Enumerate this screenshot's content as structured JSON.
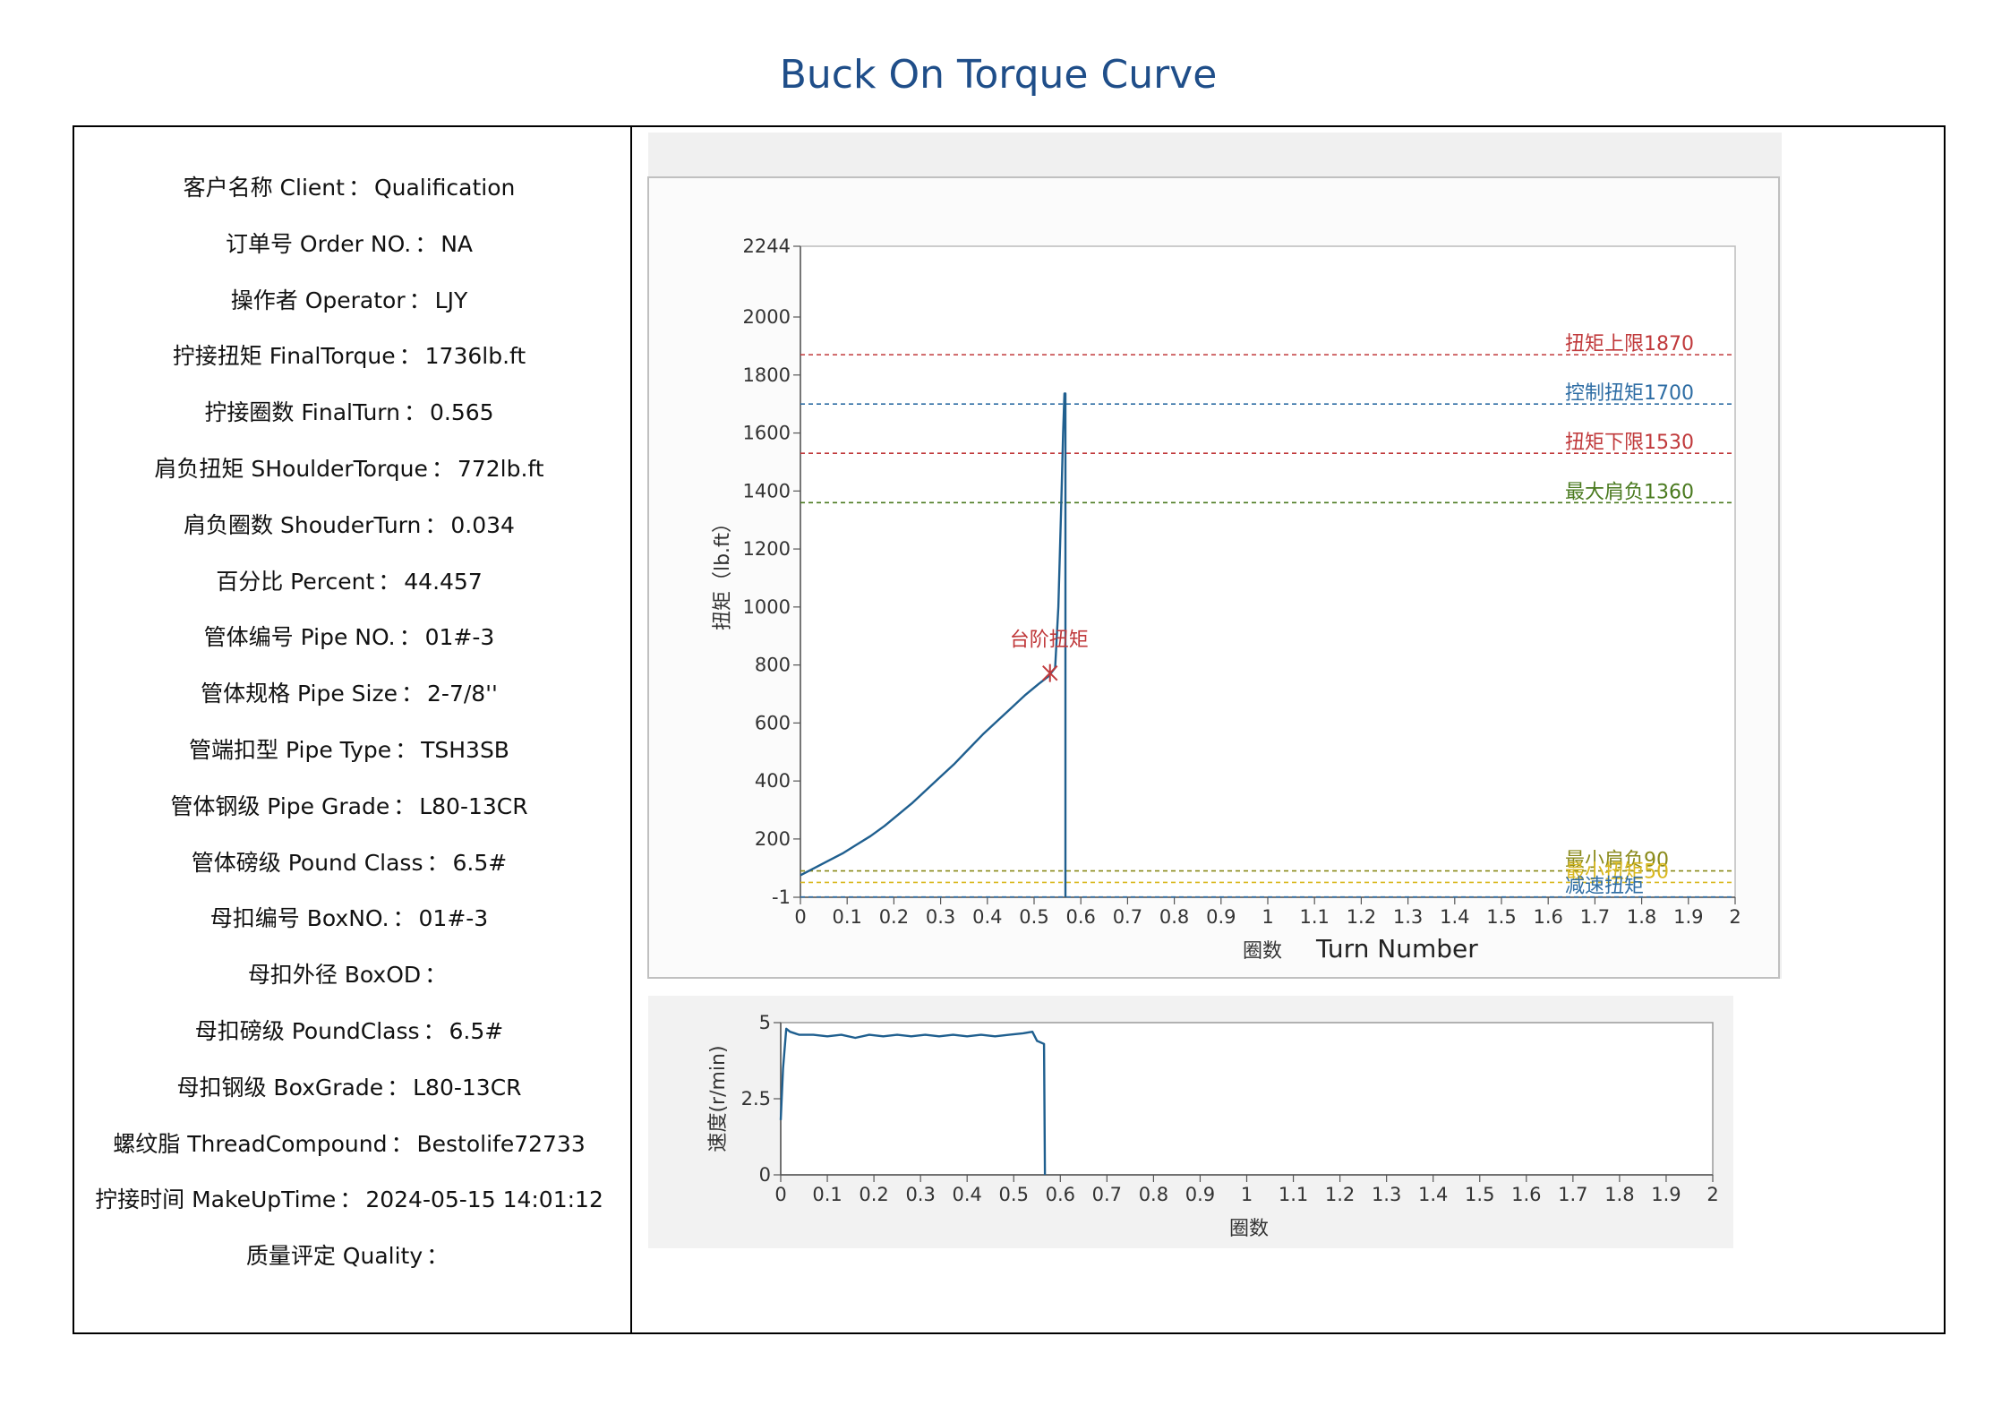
{
  "title": "Buck On Torque Curve",
  "info": [
    {
      "label": "客户名称 Client",
      "value": "Qualification"
    },
    {
      "label": "订单号 Order NO.",
      "value": "NA"
    },
    {
      "label": "操作者 Operator",
      "value": "LJY"
    },
    {
      "label": "拧接扭矩 FinalTorque",
      "value": "1736lb.ft"
    },
    {
      "label": "拧接圈数 FinalTurn",
      "value": "0.565"
    },
    {
      "label": "肩负扭矩 SHoulderTorque",
      "value": "772lb.ft"
    },
    {
      "label": "肩负圈数 ShouderTurn",
      "value": "0.034"
    },
    {
      "label": "百分比 Percent",
      "value": "44.457"
    },
    {
      "label": "管体编号 Pipe NO.",
      "value": "01#-3"
    },
    {
      "label": "管体规格 Pipe Size",
      "value": "2-7/8''"
    },
    {
      "label": "管端扣型 Pipe Type",
      "value": "TSH3SB"
    },
    {
      "label": "管体钢级 Pipe Grade",
      "value": "L80-13CR"
    },
    {
      "label": "管体磅级 Pound Class",
      "value": "6.5#"
    },
    {
      "label": "母扣编号 BoxNO.",
      "value": "01#-3"
    },
    {
      "label": "母扣外径 BoxOD",
      "value": ""
    },
    {
      "label": "母扣磅级 PoundClass",
      "value": "6.5#"
    },
    {
      "label": "母扣钢级 BoxGrade",
      "value": "L80-13CR"
    },
    {
      "label": "螺纹脂 ThreadCompound",
      "value": "Bestolife72733"
    },
    {
      "label": "拧接时间 MakeUpTime",
      "value": "2024-05-15 14:01:12"
    },
    {
      "label": "质量评定 Quality",
      "value": ""
    }
  ],
  "label_separator": "：",
  "chart_data": [
    {
      "type": "line",
      "ylabel": "扭矩（lb.ft）",
      "xlabel": "圈数",
      "xlabel_en": "Turn Number",
      "xlim": [
        0,
        2
      ],
      "ylim": [
        -1,
        2244
      ],
      "x_ticks": [
        "0",
        "0.1",
        "0.2",
        "0.3",
        "0.4",
        "0.5",
        "0.6",
        "0.7",
        "0.8",
        "0.9",
        "1",
        "1.1",
        "1.2",
        "1.3",
        "1.4",
        "1.5",
        "1.6",
        "1.7",
        "1.8",
        "1.9",
        "2"
      ],
      "y_ticks": [
        "-1",
        "200",
        "400",
        "600",
        "800",
        "1000",
        "1200",
        "1400",
        "1600",
        "1800",
        "2000",
        "2244"
      ],
      "grid": false,
      "series": [
        {
          "color": "#1f5f8f",
          "x": [
            0,
            0.03,
            0.06,
            0.09,
            0.12,
            0.15,
            0.18,
            0.21,
            0.24,
            0.27,
            0.3,
            0.33,
            0.36,
            0.39,
            0.42,
            0.45,
            0.48,
            0.51,
            0.53,
            0.545,
            0.552,
            0.558,
            0.562,
            0.565,
            0.567,
            0.567
          ],
          "y": [
            75,
            100,
            125,
            150,
            180,
            210,
            245,
            285,
            325,
            370,
            415,
            460,
            510,
            560,
            605,
            650,
            695,
            735,
            760,
            790,
            1000,
            1350,
            1600,
            1736,
            1736,
            0
          ]
        }
      ],
      "reference_lines": [
        {
          "label": "扭矩上限1870",
          "y": 1870,
          "color": "#c0393b"
        },
        {
          "label": "控制扭矩1700",
          "y": 1700,
          "color": "#2e6da4"
        },
        {
          "label": "扭矩下限1530",
          "y": 1530,
          "color": "#c0393b"
        },
        {
          "label": "最大肩负1360",
          "y": 1360,
          "color": "#4a7a1f"
        },
        {
          "label": "最小肩负90",
          "y": 90,
          "color": "#8a8a1a"
        },
        {
          "label": "最小扭矩50",
          "y": 50,
          "color": "#d9b81f"
        },
        {
          "label": "减速扭矩",
          "y": 0,
          "color": "#2e6da4"
        }
      ],
      "annotation": {
        "label": "台阶扭矩",
        "x": 0.534,
        "y": 772,
        "color": "#c0393b"
      }
    },
    {
      "type": "line",
      "ylabel": "速度(r/min)",
      "xlabel": "圈数",
      "xlim": [
        0,
        2
      ],
      "ylim": [
        0,
        5
      ],
      "x_ticks": [
        "0",
        "0.1",
        "0.2",
        "0.3",
        "0.4",
        "0.5",
        "0.6",
        "0.7",
        "0.8",
        "0.9",
        "1",
        "1.1",
        "1.2",
        "1.3",
        "1.4",
        "1.5",
        "1.6",
        "1.7",
        "1.8",
        "1.9",
        "2"
      ],
      "y_ticks": [
        "0",
        "2.5",
        "5"
      ],
      "grid": false,
      "series": [
        {
          "color": "#1f5f8f",
          "x": [
            0,
            0.005,
            0.012,
            0.02,
            0.04,
            0.07,
            0.1,
            0.13,
            0.16,
            0.19,
            0.22,
            0.25,
            0.28,
            0.31,
            0.34,
            0.37,
            0.4,
            0.43,
            0.46,
            0.49,
            0.52,
            0.54,
            0.55,
            0.565,
            0.567
          ],
          "y": [
            1.8,
            3.5,
            4.8,
            4.7,
            4.6,
            4.6,
            4.55,
            4.6,
            4.5,
            4.6,
            4.55,
            4.6,
            4.55,
            4.6,
            4.55,
            4.6,
            4.55,
            4.6,
            4.55,
            4.6,
            4.65,
            4.7,
            4.4,
            4.3,
            0
          ]
        }
      ]
    }
  ]
}
